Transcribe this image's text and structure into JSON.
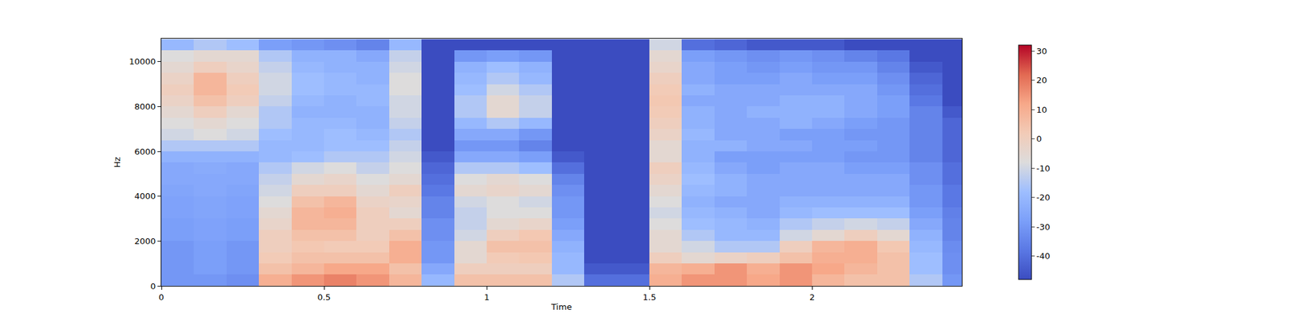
{
  "chart_data": {
    "type": "heatmap",
    "xlabel": "Time",
    "ylabel": "Hz",
    "x": [
      0.05,
      0.15,
      0.25,
      0.35,
      0.45,
      0.55,
      0.65,
      0.75,
      0.85,
      0.95,
      1.05,
      1.15,
      1.25,
      1.35,
      1.45,
      1.55,
      1.65,
      1.75,
      1.85,
      1.95,
      2.05,
      2.15,
      2.25,
      2.35,
      2.45
    ],
    "y": [
      250,
      750,
      1250,
      1750,
      2250,
      2750,
      3250,
      3750,
      4250,
      4750,
      5250,
      5750,
      6250,
      6750,
      7250,
      7750,
      8250,
      8750,
      9250,
      9750,
      10250,
      10750
    ],
    "z": [
      [
        -30,
        -30,
        -32,
        10,
        15,
        18,
        15,
        8,
        -20,
        5,
        5,
        5,
        -15,
        -40,
        -40,
        10,
        15,
        15,
        12,
        15,
        8,
        5,
        5,
        -15,
        -30
      ],
      [
        -30,
        -28,
        -30,
        5,
        8,
        12,
        12,
        5,
        -25,
        0,
        0,
        0,
        -20,
        -45,
        -45,
        8,
        10,
        15,
        10,
        15,
        12,
        8,
        5,
        -18,
        -32
      ],
      [
        -30,
        -28,
        -30,
        2,
        5,
        5,
        5,
        10,
        -30,
        -5,
        2,
        3,
        -20,
        -48,
        -48,
        0,
        -5,
        -2,
        0,
        5,
        10,
        10,
        5,
        -18,
        -32
      ],
      [
        -30,
        -28,
        -30,
        0,
        3,
        2,
        2,
        10,
        -30,
        -5,
        5,
        5,
        -22,
        -48,
        -48,
        -5,
        -10,
        -15,
        -15,
        0,
        8,
        10,
        3,
        -20,
        -33
      ],
      [
        -28,
        -27,
        -28,
        0,
        5,
        5,
        0,
        5,
        -32,
        -10,
        0,
        3,
        -25,
        -48,
        -48,
        -5,
        -15,
        -20,
        -20,
        -10,
        -5,
        0,
        -5,
        -22,
        -35
      ],
      [
        -28,
        -27,
        -28,
        -3,
        8,
        8,
        0,
        0,
        -32,
        -12,
        -5,
        -3,
        -28,
        -48,
        -48,
        -8,
        -18,
        -20,
        -22,
        -15,
        -12,
        -10,
        -12,
        -25,
        -35
      ],
      [
        -27,
        -26,
        -27,
        -5,
        8,
        10,
        0,
        -5,
        -35,
        -12,
        -8,
        -8,
        -30,
        -48,
        -48,
        -10,
        -20,
        -22,
        -25,
        -20,
        -18,
        -18,
        -18,
        -28,
        -36
      ],
      [
        -27,
        -26,
        -27,
        -8,
        5,
        8,
        -2,
        -3,
        -35,
        -10,
        -8,
        -10,
        -30,
        -48,
        -48,
        -8,
        -22,
        -25,
        -25,
        -22,
        -22,
        -22,
        -22,
        -30,
        -38
      ],
      [
        -26,
        -25,
        -26,
        -10,
        0,
        0,
        -5,
        0,
        -38,
        -5,
        -3,
        -5,
        -32,
        -48,
        -48,
        -5,
        -20,
        -22,
        -25,
        -25,
        -25,
        -25,
        -25,
        -30,
        -38
      ],
      [
        -25,
        -25,
        -25,
        -12,
        -5,
        -3,
        -8,
        -5,
        -40,
        -8,
        -5,
        -8,
        -35,
        -48,
        -48,
        -2,
        -18,
        -22,
        -25,
        -25,
        -25,
        -25,
        -25,
        -32,
        -40
      ],
      [
        -25,
        -24,
        -25,
        -15,
        -10,
        -8,
        -12,
        -8,
        -42,
        -15,
        -15,
        -18,
        -40,
        -48,
        -48,
        0,
        -20,
        -25,
        -28,
        -25,
        -25,
        -28,
        -28,
        -32,
        -40
      ],
      [
        -22,
        -22,
        -22,
        -20,
        -18,
        -15,
        -15,
        -10,
        -45,
        -25,
        -25,
        -28,
        -45,
        -48,
        -48,
        -5,
        -22,
        -28,
        -28,
        -28,
        -28,
        -30,
        -30,
        -35,
        -42
      ],
      [
        -15,
        -15,
        -15,
        -20,
        -20,
        -18,
        -18,
        -12,
        -48,
        -30,
        -30,
        -35,
        -48,
        -48,
        -48,
        -5,
        -22,
        -22,
        -25,
        -25,
        -28,
        -28,
        -30,
        -35,
        -42
      ],
      [
        -10,
        -8,
        -10,
        -18,
        -20,
        -18,
        -20,
        -15,
        -48,
        -25,
        -25,
        -30,
        -48,
        -48,
        -48,
        -2,
        -20,
        -25,
        -25,
        -28,
        -28,
        -30,
        -30,
        -35,
        -42
      ],
      [
        -8,
        -5,
        -8,
        -15,
        -20,
        -20,
        -22,
        -12,
        -48,
        -20,
        -15,
        -20,
        -48,
        -48,
        -48,
        0,
        -22,
        -25,
        -25,
        -22,
        -25,
        -28,
        -30,
        -35,
        -42
      ],
      [
        -5,
        0,
        -5,
        -15,
        -22,
        -22,
        -22,
        -10,
        -48,
        -15,
        -5,
        -12,
        -48,
        -48,
        -48,
        2,
        -22,
        -25,
        -22,
        -22,
        -22,
        -25,
        -28,
        -35,
        -45
      ],
      [
        -2,
        5,
        0,
        -12,
        -20,
        -22,
        -20,
        -10,
        -48,
        -15,
        -5,
        -12,
        -48,
        -48,
        -48,
        3,
        -25,
        -25,
        -25,
        -22,
        -22,
        -25,
        -28,
        -38,
        -48
      ],
      [
        0,
        8,
        2,
        -10,
        -18,
        -20,
        -20,
        -8,
        -48,
        -18,
        -10,
        -15,
        -48,
        -48,
        -48,
        2,
        -22,
        -25,
        -25,
        -25,
        -25,
        -25,
        -30,
        -40,
        -48
      ],
      [
        -2,
        8,
        0,
        -10,
        -18,
        -20,
        -22,
        -8,
        -48,
        -20,
        -15,
        -20,
        -48,
        -48,
        -48,
        0,
        -25,
        -28,
        -28,
        -25,
        -28,
        -28,
        -32,
        -42,
        -48
      ],
      [
        -5,
        0,
        -3,
        -12,
        -20,
        -22,
        -22,
        -10,
        -48,
        -22,
        -18,
        -22,
        -48,
        -48,
        -48,
        -3,
        -25,
        -28,
        -30,
        -28,
        -30,
        -30,
        -35,
        -45,
        -48
      ],
      [
        -8,
        -5,
        -5,
        -15,
        -22,
        -22,
        -25,
        -12,
        -48,
        -30,
        -28,
        -30,
        -48,
        -48,
        -48,
        -5,
        -28,
        -30,
        -32,
        -30,
        -32,
        -35,
        -38,
        -48,
        -48
      ],
      [
        -20,
        -15,
        -18,
        -28,
        -30,
        -32,
        -35,
        -20,
        -48,
        -48,
        -48,
        -48,
        -48,
        -48,
        -48,
        -10,
        -40,
        -42,
        -45,
        -45,
        -45,
        -48,
        -48,
        -48,
        -48
      ]
    ],
    "xlim": [
      0,
      2.46
    ],
    "ylim": [
      0,
      11025
    ],
    "xticks": [
      0,
      0.5,
      1,
      1.5,
      2
    ],
    "yticks": [
      0,
      2000,
      4000,
      6000,
      8000,
      10000
    ],
    "colorbar": {
      "range": [
        -48,
        32
      ],
      "ticks": [
        -40,
        -30,
        -20,
        -10,
        0,
        10,
        20,
        30
      ]
    }
  }
}
